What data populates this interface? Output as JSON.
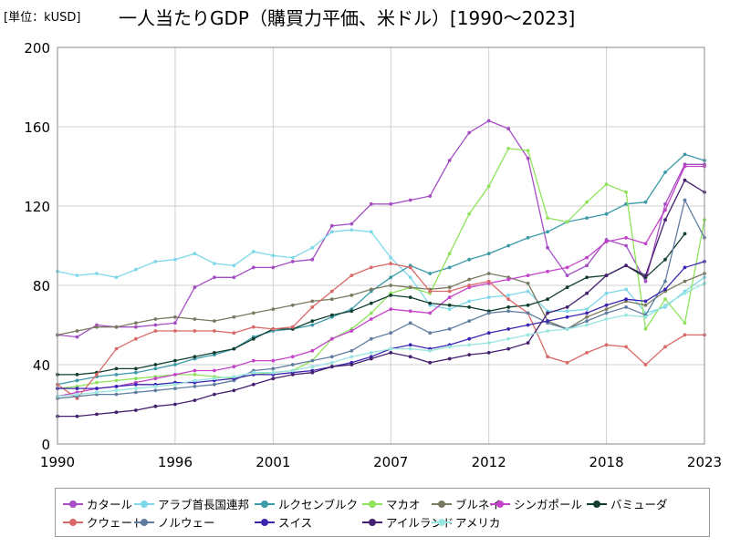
{
  "chart_data": {
    "type": "line",
    "unit_label": "[単位：kUSD]",
    "title": "一人当たりGDP（購買力平価、米ドル）[1990〜2023]",
    "xlabel": "",
    "ylabel": "",
    "xlim": [
      1990,
      2023
    ],
    "ylim": [
      0,
      200
    ],
    "yticks": [
      0,
      40,
      80,
      120,
      160,
      200
    ],
    "xticks": [
      1990,
      1996,
      2001,
      2007,
      2012,
      2018,
      2023
    ],
    "grid": true,
    "legend_position": "bottom",
    "x": [
      1990,
      1991,
      1992,
      1993,
      1994,
      1995,
      1996,
      1997,
      1998,
      1999,
      2000,
      2001,
      2002,
      2003,
      2004,
      2005,
      2006,
      2007,
      2008,
      2009,
      2010,
      2011,
      2012,
      2013,
      2014,
      2015,
      2016,
      2017,
      2018,
      2019,
      2020,
      2021,
      2022,
      2023
    ],
    "series": [
      {
        "name": "カタール",
        "color": "#a54ec4",
        "values": [
          55,
          54,
          60,
          59,
          59,
          60,
          61,
          79,
          84,
          84,
          89,
          89,
          92,
          93,
          110,
          111,
          121,
          121,
          123,
          125,
          143,
          157,
          163,
          159,
          144,
          99,
          85,
          90,
          103,
          100,
          82,
          121,
          141,
          141
        ]
      },
      {
        "name": "アラブ首長国連邦",
        "color": "#7fd8ea",
        "values": [
          87,
          85,
          86,
          84,
          88,
          92,
          93,
          96,
          91,
          90,
          97,
          95,
          94,
          99,
          107,
          108,
          107,
          94,
          84,
          70,
          68,
          72,
          74,
          75,
          77,
          67,
          67,
          68,
          76,
          78,
          66,
          69,
          77,
          84
        ]
      },
      {
        "name": "ルクセンブルク",
        "color": "#3a9aa8",
        "values": [
          30,
          32,
          34,
          35,
          36,
          38,
          40,
          43,
          45,
          48,
          54,
          57,
          58,
          60,
          64,
          68,
          77,
          84,
          90,
          86,
          89,
          93,
          96,
          100,
          104,
          107,
          112,
          114,
          116,
          121,
          122,
          137,
          146,
          143
        ]
      },
      {
        "name": "マカオ",
        "color": "#8fe35c",
        "values": [
          28,
          29,
          31,
          32,
          33,
          34,
          35,
          35,
          34,
          33,
          35,
          36,
          37,
          42,
          53,
          58,
          66,
          76,
          79,
          76,
          96,
          116,
          130,
          149,
          148,
          114,
          112,
          122,
          131,
          127,
          58,
          73,
          61,
          113
        ]
      },
      {
        "name": "ブルネイ",
        "color": "#7a7a62",
        "values": [
          55,
          57,
          59,
          59,
          61,
          63,
          64,
          63,
          62,
          64,
          66,
          68,
          70,
          72,
          73,
          75,
          78,
          80,
          79,
          78,
          79,
          83,
          86,
          84,
          81,
          62,
          58,
          64,
          68,
          72,
          70,
          77,
          82,
          86
        ]
      },
      {
        "name": "シンガポール",
        "color": "#c343c9",
        "values": [
          24,
          26,
          28,
          29,
          31,
          33,
          35,
          37,
          37,
          39,
          42,
          42,
          44,
          47,
          53,
          57,
          63,
          68,
          67,
          66,
          74,
          79,
          81,
          83,
          85,
          87,
          89,
          94,
          102,
          104,
          101,
          118,
          140,
          140
        ]
      },
      {
        "name": "バミューダ",
        "color": "#123e30",
        "values": [
          35,
          35,
          36,
          38,
          38,
          40,
          42,
          44,
          46,
          48,
          53,
          58,
          58,
          62,
          65,
          67,
          71,
          75,
          74,
          71,
          70,
          69,
          67,
          69,
          70,
          73,
          79,
          84,
          85,
          90,
          84,
          93,
          106,
          null
        ]
      },
      {
        "name": "クウェート",
        "color": "#da6a6a",
        "values": [
          30,
          23,
          35,
          48,
          53,
          57,
          57,
          57,
          57,
          56,
          59,
          58,
          59,
          69,
          77,
          85,
          89,
          91,
          89,
          77,
          77,
          80,
          82,
          73,
          66,
          44,
          41,
          46,
          50,
          49,
          40,
          49,
          55,
          55
        ]
      },
      {
        "name": "ノルウェー",
        "color": "#607da0",
        "values": [
          23,
          24,
          25,
          25,
          26,
          27,
          28,
          29,
          30,
          32,
          37,
          38,
          40,
          42,
          44,
          47,
          53,
          56,
          61,
          56,
          58,
          62,
          66,
          67,
          66,
          61,
          58,
          62,
          66,
          69,
          65,
          82,
          123,
          104
        ]
      },
      {
        "name": "スイス",
        "color": "#3b26b2",
        "values": [
          28,
          28,
          28,
          29,
          30,
          30,
          31,
          31,
          32,
          33,
          35,
          35,
          36,
          37,
          39,
          41,
          44,
          48,
          50,
          48,
          50,
          53,
          56,
          58,
          60,
          62,
          64,
          66,
          70,
          73,
          72,
          78,
          89,
          92
        ]
      },
      {
        "name": "アイルランド",
        "color": "#45206f",
        "values": [
          14,
          14,
          15,
          16,
          17,
          19,
          20,
          22,
          25,
          27,
          30,
          33,
          35,
          36,
          39,
          40,
          43,
          46,
          44,
          41,
          43,
          45,
          46,
          48,
          51,
          66,
          69,
          76,
          85,
          90,
          85,
          113,
          133,
          127
        ]
      },
      {
        "name": "アメリカ",
        "color": "#97e6e0",
        "values": [
          24,
          25,
          26,
          27,
          28,
          29,
          30,
          32,
          33,
          34,
          36,
          36,
          37,
          39,
          41,
          44,
          46,
          48,
          48,
          47,
          49,
          50,
          51,
          53,
          55,
          57,
          58,
          60,
          63,
          65,
          64,
          70,
          76,
          81
        ]
      }
    ]
  }
}
